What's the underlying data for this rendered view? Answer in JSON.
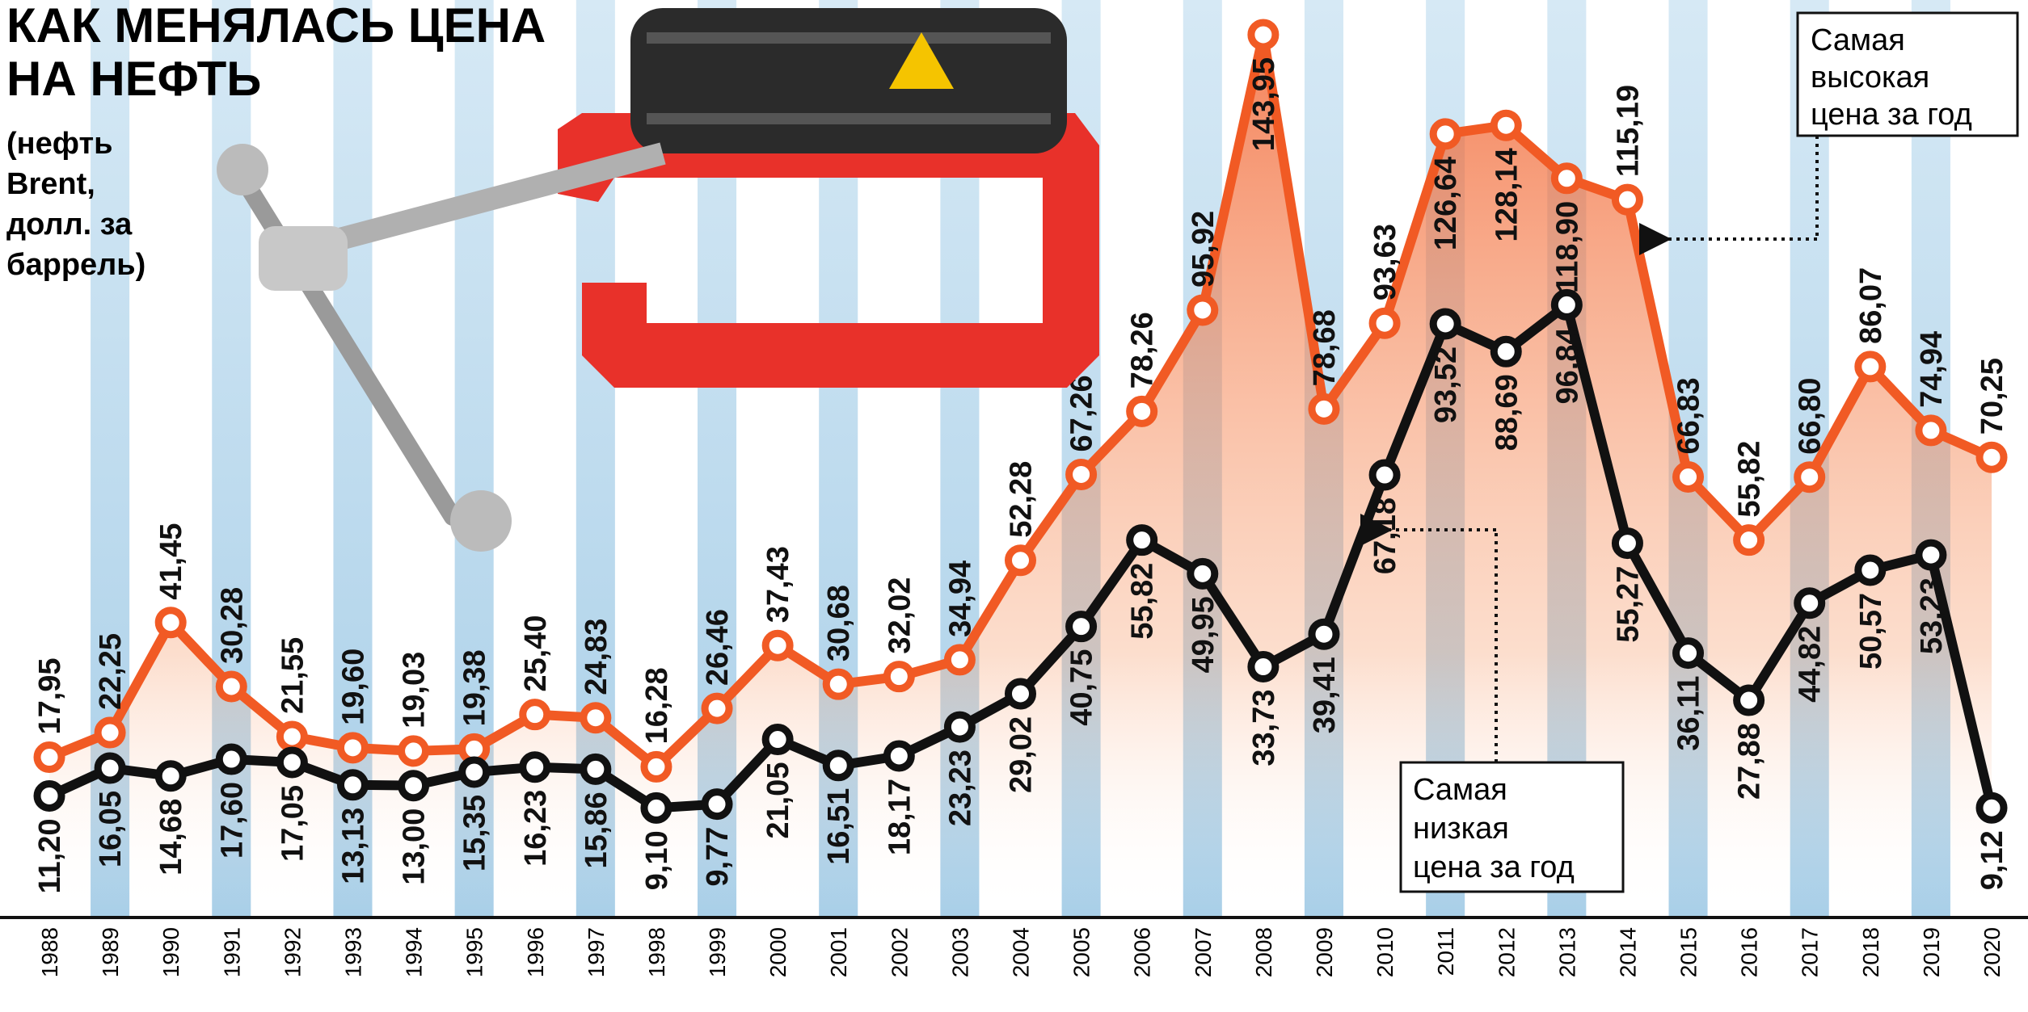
{
  "chart_data": {
    "type": "line",
    "title": [
      "КАК МЕНЯЛАСЬ ЦЕНА",
      "НА НЕФТЬ"
    ],
    "subtitle": [
      "(нефть",
      "Brent,",
      "долл. за",
      "баррель)"
    ],
    "annotations": [
      [
        "Самая",
        "высокая",
        "цена за год"
      ],
      [
        "Самая",
        "низкая",
        "цена за год"
      ]
    ],
    "categories": [
      "1988",
      "1989",
      "1990",
      "1991",
      "1992",
      "1993",
      "1994",
      "1995",
      "1996",
      "1997",
      "1998",
      "1999",
      "2000",
      "2001",
      "2002",
      "2003",
      "2004",
      "2005",
      "2006",
      "2007",
      "2008",
      "2009",
      "2010",
      "2011",
      "2012",
      "2013",
      "2014",
      "2015",
      "2016",
      "2017",
      "2018",
      "2019",
      "2020"
    ],
    "ylim": [
      -10,
      150
    ],
    "series": [
      {
        "color": "#f15a24",
        "values": [
          17.95,
          22.25,
          41.45,
          30.28,
          21.55,
          19.6,
          19.03,
          19.38,
          25.4,
          24.83,
          16.28,
          26.46,
          37.43,
          30.68,
          32.02,
          34.94,
          52.28,
          67.26,
          78.26,
          95.92,
          143.95,
          78.68,
          93.63,
          126.64,
          128.14,
          118.9,
          115.19,
          66.83,
          55.82,
          66.8,
          86.07,
          74.94,
          70.25
        ],
        "value_labels": [
          "17,95",
          "22,25",
          "41,45",
          "30,28",
          "21,55",
          "19,60",
          "19,03",
          "19,38",
          "25,40",
          "24,83",
          "16,28",
          "26,46",
          "37,43",
          "30,68",
          "32,02",
          "34,94",
          "52,28",
          "67,26",
          "78,26",
          "95,92",
          "143,95",
          "78,68",
          "93,63",
          "126,64",
          "128,14",
          "118,90",
          "115,19",
          "66,83",
          "55,82",
          "66,80",
          "86,07",
          "74,94",
          "70,25"
        ]
      },
      {
        "color": "#111111",
        "values": [
          11.2,
          16.05,
          14.68,
          17.6,
          17.05,
          13.13,
          13.0,
          15.35,
          16.23,
          15.86,
          9.1,
          9.77,
          21.05,
          16.51,
          18.17,
          23.23,
          29.02,
          40.75,
          55.82,
          49.95,
          33.73,
          39.41,
          67.18,
          93.52,
          88.69,
          96.84,
          55.27,
          36.11,
          27.88,
          44.82,
          50.57,
          53.23,
          9.12
        ],
        "value_labels": [
          "11,20",
          "16,05",
          "14,68",
          "17,60",
          "17,05",
          "13,13",
          "13,00",
          "15,35",
          "16,23",
          "15,86",
          "9,10",
          "9,77",
          "21,05",
          "16,51",
          "18,17",
          "23,23",
          "29,02",
          "40,75",
          "55,82",
          "49,95",
          "33,73",
          "39,41",
          "67,18",
          "93,52",
          "88,69",
          "96,84",
          "55,27",
          "36,11",
          "27,88",
          "44,82",
          "50,57",
          "53,23",
          "9,12"
        ]
      }
    ]
  }
}
